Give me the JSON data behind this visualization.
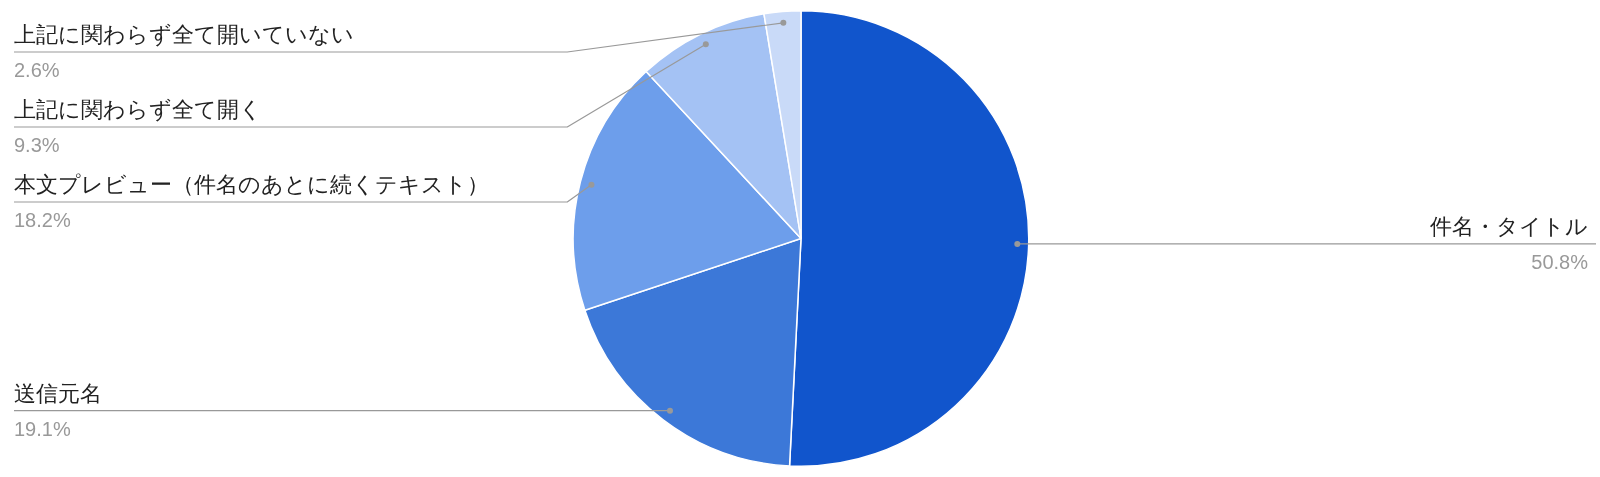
{
  "chart_data": {
    "type": "pie",
    "categories": [
      "件名・タイトル",
      "送信元名",
      "本文プレビュー（件名のあとに続くテキスト）",
      "上記に関わらず全て開く",
      "上記に関わらず全て開いていない"
    ],
    "values": [
      50.8,
      19.1,
      18.2,
      9.3,
      2.6
    ],
    "colors": [
      "#1155cc",
      "#3c78d8",
      "#6d9eeb",
      "#a4c2f4",
      "#c9daf8"
    ],
    "value_labels": [
      "50.8%",
      "19.1%",
      "18.2%",
      "9.3%",
      "2.6%"
    ],
    "legend": false
  }
}
